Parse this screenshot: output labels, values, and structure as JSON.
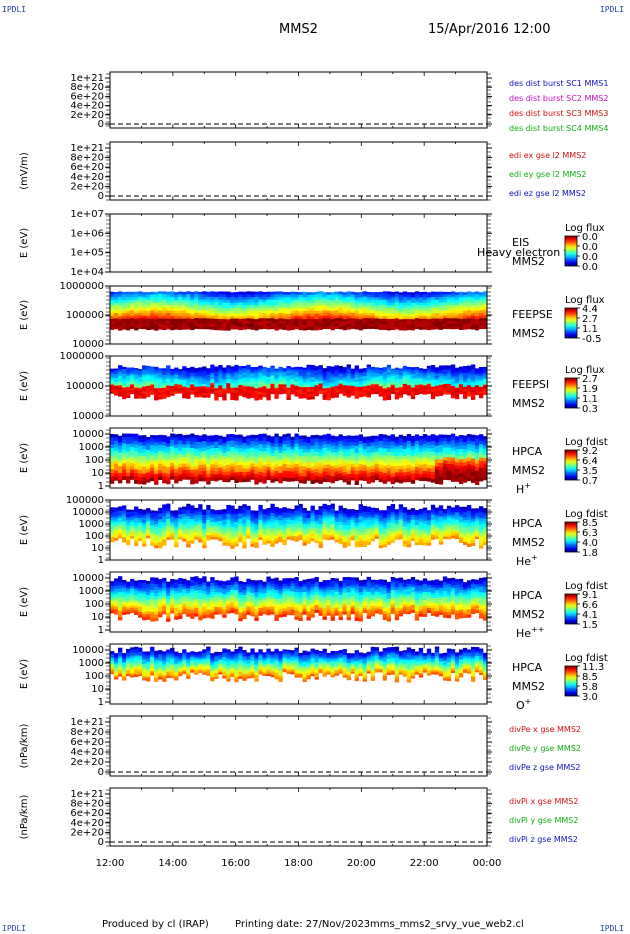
{
  "corner_labels": {
    "tl": "IPDLI",
    "tr": "IPDLI",
    "bl": "IPDLI",
    "br": "IPDLI"
  },
  "header": {
    "spacecraft": "MMS2",
    "datetime": "15/Apr/2016 12:00"
  },
  "footer": {
    "produced_by": "Produced by cl (IRAP)",
    "printing_date": "Printing date: 27/Nov/2023",
    "product": "mms_mms2_srvy_vue_web2.cl"
  },
  "chart_data": [
    {
      "type": "line",
      "panel": "des-dist-burst",
      "ylabel": "",
      "yticks": [
        "1e+21",
        "8e+20",
        "6e+20",
        "4e+20",
        "2e+20",
        "0"
      ],
      "ylim": [
        0,
        1.1e+21
      ],
      "series": [
        {
          "name": "des dist burst SC1 MMS1",
          "color": "#1010c0",
          "values": []
        },
        {
          "name": "des dist burst SC2 MMS2",
          "color": "#c010c0",
          "values": []
        },
        {
          "name": "des dist burst SC3 MMS3",
          "color": "#d01010",
          "values": []
        },
        {
          "name": "des dist burst SC4 MMS4",
          "color": "#10b010",
          "values": []
        }
      ]
    },
    {
      "type": "line",
      "panel": "edi-e-gse-l2",
      "ylabel": "(mV/m)",
      "yticks": [
        "1e+21",
        "8e+20",
        "6e+20",
        "4e+20",
        "2e+20",
        "0"
      ],
      "ylim": [
        0,
        1.1e+21
      ],
      "series": [
        {
          "name": "edi ex gse l2 MMS2",
          "color": "#d01010",
          "values": []
        },
        {
          "name": "edi ey gse l2 MMS2",
          "color": "#10b010",
          "values": []
        },
        {
          "name": "edi ez gse l2 MMS2",
          "color": "#1010c0",
          "values": []
        }
      ]
    },
    {
      "type": "heatmap",
      "panel": "eis",
      "ylabel": "E (eV)",
      "yscale": "log",
      "yticks": [
        "1e+07",
        "1e+06",
        "1e+05",
        "1e+04"
      ],
      "ylim": [
        10000,
        10000000
      ],
      "instrument": "EIS",
      "spacecraft": "MMS2",
      "overlay_text": "Heavy electron to",
      "colorbar": {
        "label": "Log flux",
        "ticks": [
          "0.0",
          "0.0",
          "0.0",
          "0.0"
        ]
      }
    },
    {
      "type": "heatmap",
      "panel": "feepse",
      "ylabel": "E (eV)",
      "yscale": "log",
      "yticks": [
        "1000000",
        "100000",
        "10000"
      ],
      "ylim": [
        10000,
        1000000
      ],
      "instrument": "FEEPSE",
      "spacecraft": "MMS2",
      "colorbar": {
        "label": "Log flux",
        "ticks": [
          "4.4",
          "2.7",
          "1.1",
          "-0.5"
        ]
      }
    },
    {
      "type": "heatmap",
      "panel": "feepsi",
      "ylabel": "E (eV)",
      "yscale": "log",
      "yticks": [
        "1000000",
        "100000",
        "10000"
      ],
      "ylim": [
        10000,
        1000000
      ],
      "instrument": "FEEPSI",
      "spacecraft": "MMS2",
      "colorbar": {
        "label": "Log flux",
        "ticks": [
          "2.7",
          "1.9",
          "1.1",
          "0.3"
        ]
      }
    },
    {
      "type": "heatmap",
      "panel": "hpca-h",
      "ylabel": "E (eV)",
      "yscale": "log",
      "yticks": [
        "10000",
        "1000",
        "100",
        "10",
        "1"
      ],
      "ylim": [
        1,
        30000
      ],
      "instrument": "HPCA",
      "spacecraft": "MMS2",
      "species": "H",
      "species_sup": "+",
      "colorbar": {
        "label": "Log fdist",
        "ticks": [
          "9.2",
          "6.4",
          "3.5",
          "0.7"
        ]
      }
    },
    {
      "type": "heatmap",
      "panel": "hpca-he",
      "ylabel": "E (eV)",
      "yscale": "log",
      "yticks": [
        "100000",
        "10000",
        "1000",
        "100",
        "10",
        "1"
      ],
      "ylim": [
        1,
        100000
      ],
      "instrument": "HPCA",
      "spacecraft": "MMS2",
      "species": "He",
      "species_sup": "+",
      "colorbar": {
        "label": "Log fdist",
        "ticks": [
          "8.5",
          "6.3",
          "4.0",
          "1.8"
        ]
      }
    },
    {
      "type": "heatmap",
      "panel": "hpca-he2",
      "ylabel": "E (eV)",
      "yscale": "log",
      "yticks": [
        "10000",
        "1000",
        "100",
        "10",
        "1"
      ],
      "ylim": [
        1,
        30000
      ],
      "instrument": "HPCA",
      "spacecraft": "MMS2",
      "species": "He",
      "species_sup": "++",
      "colorbar": {
        "label": "Log fdist",
        "ticks": [
          "9.1",
          "6.6",
          "4.1",
          "1.5"
        ]
      }
    },
    {
      "type": "heatmap",
      "panel": "hpca-o",
      "ylabel": "E (eV)",
      "yscale": "log",
      "yticks": [
        "10000",
        "1000",
        "100",
        "10",
        "1"
      ],
      "ylim": [
        1,
        30000
      ],
      "instrument": "HPCA",
      "spacecraft": "MMS2",
      "species": "O",
      "species_sup": "+",
      "colorbar": {
        "label": "Log fdist",
        "ticks": [
          "11.3",
          "8.5",
          "5.8",
          "3.0"
        ]
      }
    },
    {
      "type": "line",
      "panel": "divpe",
      "ylabel": "(nPa/km)",
      "yticks": [
        "1e+21",
        "8e+20",
        "6e+20",
        "4e+20",
        "2e+20",
        "0"
      ],
      "ylim": [
        0,
        1.1e+21
      ],
      "series": [
        {
          "name": "divPe x gse MMS2",
          "color": "#d01010",
          "values": []
        },
        {
          "name": "divPe y gse MMS2",
          "color": "#10b010",
          "values": []
        },
        {
          "name": "divPe z gse MMS2",
          "color": "#1010c0",
          "values": []
        }
      ]
    },
    {
      "type": "line",
      "panel": "divpi",
      "ylabel": "(nPa/km)",
      "yticks": [
        "1e+21",
        "8e+20",
        "6e+20",
        "4e+20",
        "2e+20",
        "0"
      ],
      "ylim": [
        0,
        1.1e+21
      ],
      "series": [
        {
          "name": "divPi x gse MMS2",
          "color": "#d01010",
          "values": []
        },
        {
          "name": "divPi y gse MMS2",
          "color": "#10b010",
          "values": []
        },
        {
          "name": "divPi z gse MMS2",
          "color": "#1010c0",
          "values": []
        }
      ]
    }
  ],
  "x_axis": {
    "ticks": [
      "12:00",
      "14:00",
      "16:00",
      "18:00",
      "20:00",
      "22:00",
      "00:00"
    ],
    "range_hours": [
      0,
      12
    ]
  }
}
